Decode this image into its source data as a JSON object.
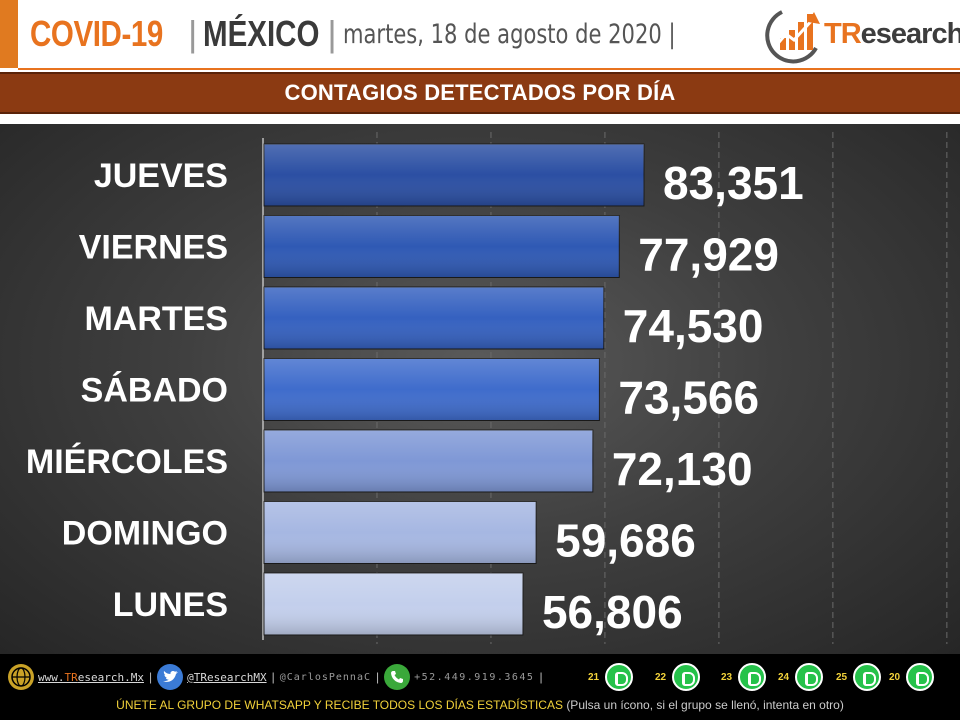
{
  "header": {
    "title_main": "COVID-19",
    "title_sep": "|",
    "country": "MÉXICO",
    "date": "martes, 18 de agosto de 2020",
    "date_sep": "|",
    "logo_tr": "TR",
    "logo_rest": "esearch"
  },
  "banner": {
    "title": "CONTAGIOS DETECTADOS POR DÍA"
  },
  "chart_data": {
    "type": "bar",
    "orientation": "horizontal",
    "categories": [
      "JUEVES",
      "VIERNES",
      "MARTES",
      "SÁBADO",
      "MIÉRCOLES",
      "DOMINGO",
      "LUNES"
    ],
    "values": [
      83351,
      77929,
      74530,
      73566,
      72130,
      59686,
      56806
    ],
    "value_labels": [
      "83,351",
      "77,929",
      "74,530",
      "73,566",
      "72,130",
      "59,686",
      "56,806"
    ],
    "bar_colors": [
      "#2b4fa3",
      "#2f59b4",
      "#3561c0",
      "#3f6ccc",
      "#7f98d6",
      "#a6b7e2",
      "#c3cfec"
    ],
    "xlim": [
      0,
      150000
    ],
    "grid": true,
    "legend": "none"
  },
  "footer": {
    "website_prefix": "www.",
    "website_tr": "TR",
    "website_rest": "esearch.Mx",
    "twitter_1": "@TResearchMX",
    "twitter_2": "@CarlosPennaC",
    "phone": "+52.449.919.3645",
    "separator": "|",
    "whatsapp_groups": [
      "21",
      "22",
      "23",
      "24",
      "25",
      "20"
    ],
    "cta": "ÚNETE AL GRUPO DE WHATSAPP Y RECIBE TODOS LOS DÍAS ESTADÍSTICAS",
    "cta_note": "(Pulsa un ícono, si el grupo se llenó, intenta en otro)"
  }
}
